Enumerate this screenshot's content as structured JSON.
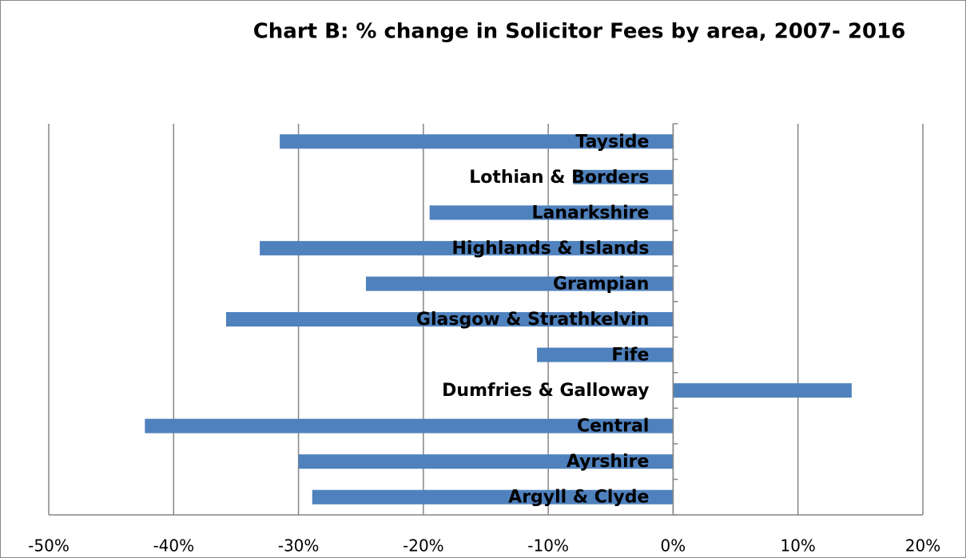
{
  "chart_data": {
    "type": "bar",
    "orientation": "horizontal",
    "title": "Chart B: % change in Solicitor Fees  by area, 2007- 2016",
    "categories": [
      "Argyll & Clyde",
      "Ayrshire",
      "Central",
      "Dumfries & Galloway",
      "Fife",
      "Glasgow & Strathkelvin",
      "Grampian",
      "Highlands & Islands",
      "Lanarkshire",
      "Lothian & Borders",
      "Tayside"
    ],
    "values": [
      -28.9,
      -30.0,
      -42.3,
      14.3,
      -10.9,
      -35.8,
      -24.6,
      -33.1,
      -19.5,
      -8.0,
      -31.5
    ],
    "color": "#4f81bd",
    "xlim": [
      -50,
      20
    ],
    "xticks": [
      {
        "value": -50,
        "label": "-50%"
      },
      {
        "value": -40,
        "label": "-40%"
      },
      {
        "value": -30,
        "label": "-30%"
      },
      {
        "value": -20,
        "label": "-20%"
      },
      {
        "value": -10,
        "label": "-10%"
      },
      {
        "value": 0,
        "label": "0%"
      },
      {
        "value": 10,
        "label": "10%"
      },
      {
        "value": 20,
        "label": "20%"
      }
    ],
    "grid": true
  }
}
